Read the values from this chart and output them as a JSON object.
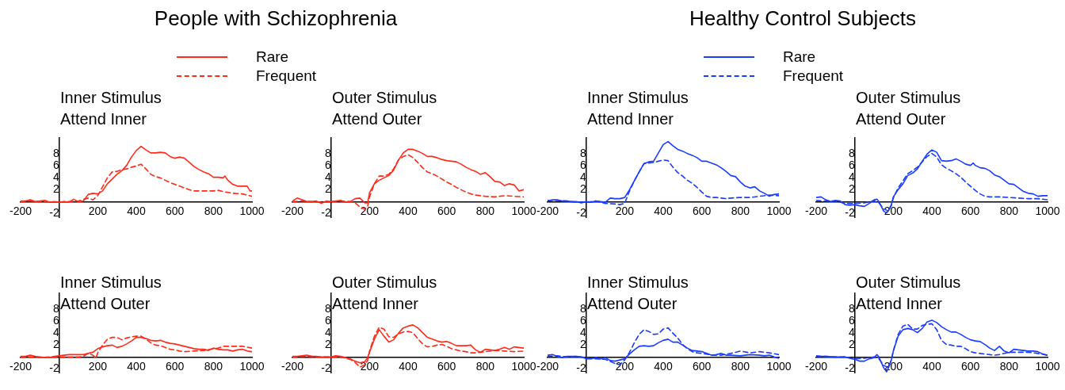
{
  "chart_data": [
    {
      "type": "line",
      "title": "People with Schizophrenia",
      "subtitle": "Inner Stimulus\nAttend Inner",
      "legend": "top",
      "xlim": [
        -200,
        1000
      ],
      "ylim": [
        -2.7,
        10.8
      ],
      "xticks": [
        -200,
        200,
        400,
        600,
        800,
        1000
      ],
      "yticks": [
        -2,
        2,
        4,
        6,
        8
      ],
      "series": [
        {
          "name": "Rare",
          "color": "#ff2a1a",
          "line_style": "solid",
          "x": [
            -200,
            -175,
            -150,
            -125,
            -100,
            -75,
            -50,
            -25,
            0,
            25,
            50,
            75,
            100,
            125,
            150,
            175,
            200,
            225,
            250,
            275,
            300,
            325,
            350,
            375,
            400,
            425,
            450,
            475,
            500,
            525,
            550,
            575,
            600,
            625,
            650,
            675,
            700,
            725,
            750,
            775,
            800,
            825,
            850,
            860,
            875,
            900,
            925,
            950,
            975,
            990,
            1000
          ],
          "values": [
            0.1,
            0.1,
            0.3,
            0,
            0.1,
            0.2,
            -0.1,
            0,
            -0.1,
            0,
            -0.1,
            0.4,
            0,
            0.1,
            1.2,
            1.4,
            1.3,
            1.8,
            3,
            3.8,
            4.6,
            5.2,
            6.1,
            7.5,
            8.6,
            9.3,
            8.7,
            8.2,
            8.2,
            8.3,
            8.2,
            7.6,
            7.3,
            7.5,
            7.3,
            6.6,
            5.9,
            5.4,
            5,
            4.7,
            4.1,
            4.1,
            4,
            4.3,
            3.6,
            2.9,
            2.6,
            2.6,
            2.6,
            1.8,
            1.8
          ]
        },
        {
          "name": "Frequent",
          "color": "#ff2a1a",
          "line_style": "dashed",
          "x": [
            -200,
            -150,
            -100,
            -50,
            0,
            50,
            100,
            150,
            175,
            200,
            225,
            250,
            275,
            300,
            325,
            350,
            375,
            400,
            425,
            450,
            475,
            500,
            525,
            550,
            575,
            600,
            625,
            650,
            675,
            700,
            750,
            800,
            825,
            850,
            900,
            950,
            1000
          ],
          "values": [
            0,
            0.1,
            0,
            -0.1,
            -0.1,
            0,
            0.1,
            0.6,
            0.3,
            1,
            2.5,
            4,
            5,
            5.1,
            5.4,
            5.5,
            5.8,
            6,
            6.3,
            5.5,
            4.6,
            4.2,
            4,
            3.6,
            3.2,
            2.9,
            2.6,
            2.3,
            2,
            1.8,
            1.8,
            1.8,
            1.9,
            1.7,
            1.4,
            1.3,
            0.9
          ]
        }
      ]
    },
    {
      "type": "line",
      "subtitle": "Outer Stimulus\nAttend Outer",
      "xlim": [
        -200,
        1000
      ],
      "ylim": [
        -2.7,
        10.8
      ],
      "xticks": [
        -200,
        200,
        400,
        600,
        800,
        1000
      ],
      "yticks": [
        -2,
        2,
        4,
        6,
        8
      ],
      "series": [
        {
          "color": "#ff2a1a",
          "line_style": "solid",
          "x": [
            -200,
            -175,
            -150,
            -125,
            -100,
            -75,
            -50,
            -25,
            0,
            25,
            50,
            75,
            100,
            125,
            150,
            175,
            190,
            200,
            225,
            250,
            275,
            300,
            325,
            350,
            375,
            400,
            425,
            450,
            475,
            500,
            525,
            550,
            575,
            600,
            625,
            650,
            675,
            700,
            725,
            750,
            775,
            800,
            825,
            850,
            875,
            900,
            925,
            950,
            975,
            1000
          ],
          "values": [
            0.1,
            0.6,
            0.3,
            0,
            0,
            0.1,
            -0.3,
            0.1,
            0,
            0.1,
            0.2,
            -0.1,
            0,
            0.5,
            0.6,
            -0.2,
            -0.2,
            1.5,
            3,
            3.6,
            4,
            4.4,
            5.3,
            7,
            8.2,
            8.8,
            8.8,
            8.5,
            8.1,
            7.6,
            7.6,
            7.4,
            7.1,
            6.9,
            6.8,
            6.7,
            6.3,
            5.8,
            5.4,
            5.1,
            4.6,
            4.9,
            4.2,
            3.4,
            3.3,
            2.7,
            3,
            2.8,
            1.8,
            2
          ]
        },
        {
          "color": "#ff2a1a",
          "line_style": "dashed",
          "x": [
            -200,
            -150,
            -100,
            -50,
            0,
            50,
            100,
            125,
            150,
            175,
            190,
            200,
            225,
            250,
            275,
            300,
            325,
            350,
            375,
            400,
            425,
            450,
            475,
            500,
            525,
            550,
            575,
            600,
            625,
            650,
            675,
            700,
            725,
            750,
            800,
            850,
            900,
            950,
            1000
          ],
          "values": [
            0,
            0.1,
            0,
            -0.1,
            0,
            0.1,
            0,
            -0.2,
            -0.9,
            -1.3,
            -0.8,
            0.8,
            3,
            4.3,
            4.3,
            4.6,
            5.5,
            7,
            7.6,
            7.9,
            7.4,
            6.6,
            5.7,
            5,
            4.7,
            4.3,
            3.8,
            3.3,
            2.9,
            2.4,
            2,
            1.6,
            1.3,
            1.1,
            0.9,
            0.8,
            1,
            0.9,
            0.8
          ]
        }
      ]
    },
    {
      "type": "line",
      "title": "Healthy Control Subjects",
      "subtitle": "Inner Stimulus\nAttend Inner",
      "legend": "top",
      "xlim": [
        -200,
        1000
      ],
      "ylim": [
        -2.7,
        10.8
      ],
      "xticks": [
        -200,
        200,
        400,
        600,
        800,
        1000
      ],
      "yticks": [
        -2,
        2,
        4,
        6,
        8
      ],
      "series": [
        {
          "name": "Rare",
          "color": "#1a3cff",
          "line_style": "solid",
          "x": [
            -200,
            -175,
            -150,
            -125,
            -100,
            -75,
            -50,
            -25,
            0,
            25,
            50,
            75,
            100,
            125,
            150,
            175,
            200,
            225,
            250,
            275,
            300,
            325,
            350,
            375,
            400,
            425,
            450,
            475,
            500,
            525,
            550,
            575,
            600,
            625,
            650,
            675,
            700,
            725,
            750,
            775,
            800,
            825,
            850,
            875,
            900,
            925,
            950,
            975,
            1000
          ],
          "values": [
            0.1,
            0.3,
            0.3,
            0.1,
            0.1,
            0,
            0,
            -0.2,
            0,
            -0.1,
            0.1,
            0,
            -0.1,
            0.6,
            0.5,
            0.5,
            0.7,
            2,
            3.5,
            5,
            6.4,
            6.7,
            6.8,
            8.2,
            9.6,
            10.1,
            9.4,
            8.8,
            8.5,
            8.1,
            7.8,
            7.4,
            6.8,
            6.8,
            6.5,
            6.2,
            5.7,
            5.1,
            4.4,
            4.2,
            3.3,
            2.6,
            2.3,
            2.5,
            1.8,
            1.4,
            0.9,
            1.2,
            1.3
          ]
        },
        {
          "name": "Frequent",
          "color": "#1a3cff",
          "line_style": "dashed",
          "x": [
            -200,
            -150,
            -100,
            -50,
            0,
            50,
            100,
            150,
            175,
            200,
            225,
            250,
            275,
            300,
            325,
            350,
            375,
            400,
            425,
            450,
            475,
            500,
            525,
            550,
            575,
            600,
            625,
            650,
            675,
            700,
            725,
            750,
            800,
            850,
            900,
            950,
            1000
          ],
          "values": [
            0.2,
            0.2,
            0.1,
            -0.1,
            -0.1,
            0.1,
            -0.3,
            -0.4,
            -0.5,
            -0.3,
            1.8,
            3.5,
            5,
            6.4,
            6.5,
            6.6,
            6.8,
            7,
            6.9,
            5.8,
            4.9,
            4.3,
            3.6,
            3.1,
            2.4,
            1.6,
            0.9,
            0.7,
            0.7,
            0.6,
            0.5,
            0.6,
            0.7,
            0.7,
            0.9,
            1.1,
            1
          ]
        }
      ]
    },
    {
      "type": "line",
      "subtitle": "Outer Stimulus\nAttend Outer",
      "xlim": [
        -200,
        1000
      ],
      "ylim": [
        -2.7,
        10.8
      ],
      "xticks": [
        -200,
        200,
        400,
        600,
        800,
        1000
      ],
      "yticks": [
        -2,
        2,
        4,
        6,
        8
      ],
      "series": [
        {
          "color": "#1a3cff",
          "line_style": "solid",
          "x": [
            -200,
            -175,
            -150,
            -125,
            -100,
            -75,
            -50,
            -25,
            0,
            25,
            50,
            75,
            100,
            115,
            125,
            150,
            165,
            175,
            190,
            200,
            225,
            250,
            275,
            300,
            325,
            350,
            375,
            400,
            425,
            450,
            475,
            500,
            525,
            550,
            575,
            600,
            615,
            625,
            650,
            675,
            700,
            725,
            750,
            775,
            800,
            825,
            850,
            875,
            900,
            925,
            950,
            975,
            1000
          ],
          "values": [
            0.7,
            0.8,
            0.3,
            0,
            0.2,
            0.1,
            -0.5,
            -0.6,
            -0.5,
            -0.7,
            -0.8,
            -0.3,
            0.3,
            0.4,
            0,
            -1.6,
            -1.9,
            -1.5,
            -0.5,
            0.8,
            2,
            3,
            4.4,
            4.8,
            5.5,
            6.8,
            8,
            8.7,
            8.3,
            6.9,
            6.8,
            6.9,
            7.2,
            6.8,
            6.3,
            6.1,
            6.5,
            6.1,
            5.7,
            5.6,
            5.2,
            4.5,
            4.2,
            3.6,
            3,
            2.9,
            2.3,
            1.7,
            1.4,
            1.3,
            0.9,
            1,
            1
          ]
        },
        {
          "color": "#1a3cff",
          "line_style": "dashed",
          "x": [
            -200,
            -150,
            -100,
            -50,
            0,
            50,
            100,
            125,
            150,
            175,
            190,
            200,
            225,
            250,
            275,
            300,
            325,
            350,
            375,
            400,
            425,
            450,
            475,
            500,
            525,
            550,
            575,
            600,
            625,
            650,
            675,
            700,
            750,
            800,
            850,
            900,
            950,
            1000
          ],
          "values": [
            0.2,
            0.1,
            0.1,
            -0.3,
            -0.3,
            -0.2,
            0.1,
            -0.2,
            -1.2,
            -1.6,
            -0.6,
            0.6,
            2.3,
            3.5,
            4.7,
            5.2,
            5.8,
            6.7,
            7.6,
            8.1,
            7.5,
            6.2,
            5.6,
            5.2,
            4.7,
            4.1,
            3.3,
            2.6,
            1.9,
            1.3,
            0.9,
            0.8,
            0.8,
            0.7,
            0.6,
            0.5,
            0.5,
            0.3
          ]
        }
      ]
    },
    {
      "type": "line",
      "subtitle": "Inner Stimulus\nAttend Outer",
      "xlim": [
        -200,
        1000
      ],
      "ylim": [
        -2.7,
        10.8
      ],
      "xticks": [
        -200,
        200,
        400,
        600,
        800,
        1000
      ],
      "yticks": [
        -2,
        2,
        4,
        6,
        8
      ],
      "series": [
        {
          "color": "#ff2a1a",
          "line_style": "solid",
          "x": [
            -200,
            -175,
            -150,
            -125,
            -100,
            -75,
            -50,
            -25,
            0,
            25,
            50,
            75,
            100,
            125,
            150,
            175,
            200,
            225,
            250,
            275,
            300,
            325,
            350,
            375,
            400,
            425,
            450,
            475,
            500,
            525,
            550,
            575,
            600,
            625,
            650,
            675,
            700,
            725,
            750,
            775,
            800,
            825,
            850,
            875,
            900,
            925,
            950,
            975,
            1000
          ],
          "values": [
            0.1,
            0.1,
            0.3,
            0.1,
            0,
            -0.1,
            -0.1,
            0.1,
            0.2,
            0.3,
            0.4,
            0.4,
            0.4,
            0.4,
            0.6,
            0.8,
            1.4,
            1.7,
            1.9,
            2,
            1.6,
            1.8,
            2.2,
            2.7,
            3.3,
            3.3,
            3.1,
            2.8,
            2.7,
            2.8,
            2.5,
            2.3,
            2.2,
            2,
            1.8,
            1.6,
            1.4,
            1.3,
            1.3,
            1.1,
            1.5,
            1.3,
            1.2,
            1.2,
            1,
            1.2,
            1.3,
            1,
            0.9
          ]
        },
        {
          "color": "#ff2a1a",
          "line_style": "dashed",
          "x": [
            -200,
            -150,
            -100,
            -50,
            0,
            50,
            100,
            125,
            150,
            175,
            190,
            200,
            225,
            250,
            275,
            300,
            325,
            350,
            375,
            400,
            425,
            450,
            475,
            500,
            525,
            550,
            575,
            600,
            625,
            650,
            700,
            750,
            800,
            825,
            850,
            900,
            950,
            1000
          ],
          "values": [
            0,
            0,
            -0.1,
            0,
            0,
            0,
            0,
            0.1,
            0.6,
            0.3,
            -0.2,
            0.7,
            2,
            3,
            3.3,
            3.3,
            2.9,
            3.2,
            3.4,
            3.5,
            3.5,
            3,
            2.4,
            2,
            1.9,
            1.6,
            1.3,
            1.2,
            1,
            0.9,
            1,
            1.1,
            1.4,
            1.5,
            1.8,
            1.8,
            1.8,
            1.5
          ]
        }
      ]
    },
    {
      "type": "line",
      "subtitle": "Outer Stimulus\nAttend Inner",
      "xlim": [
        -200,
        1000
      ],
      "ylim": [
        -2.7,
        10.8
      ],
      "xticks": [
        -200,
        200,
        400,
        600,
        800,
        1000
      ],
      "yticks": [
        -2,
        2,
        4,
        6,
        8
      ],
      "series": [
        {
          "color": "#ff2a1a",
          "line_style": "solid",
          "x": [
            -200,
            -175,
            -150,
            -125,
            -100,
            -75,
            -50,
            0,
            25,
            50,
            75,
            100,
            125,
            150,
            175,
            190,
            200,
            225,
            250,
            275,
            300,
            325,
            350,
            375,
            400,
            425,
            450,
            475,
            500,
            525,
            550,
            575,
            600,
            625,
            650,
            675,
            700,
            725,
            750,
            775,
            800,
            825,
            850,
            875,
            900,
            925,
            950,
            975,
            1000
          ],
          "values": [
            0.1,
            0.1,
            0.2,
            0.3,
            0.1,
            0.1,
            0,
            0,
            0.2,
            0.1,
            -0.1,
            -0.3,
            -0.7,
            -1,
            -0.8,
            -0.1,
            0.8,
            3,
            4.6,
            3.5,
            2.5,
            2.9,
            4,
            4.9,
            5.2,
            5.4,
            4.9,
            4.1,
            3.3,
            3,
            2.7,
            2.5,
            2.6,
            2.3,
            1.9,
            1.9,
            1.9,
            2,
            1.2,
            0.8,
            1.3,
            1.2,
            1.1,
            1.3,
            1.6,
            1.3,
            1.7,
            1.6,
            1.5
          ]
        },
        {
          "color": "#ff2a1a",
          "line_style": "dashed",
          "x": [
            -200,
            -150,
            -100,
            -50,
            0,
            50,
            100,
            125,
            150,
            175,
            190,
            200,
            225,
            250,
            275,
            300,
            325,
            350,
            375,
            400,
            425,
            450,
            475,
            500,
            525,
            550,
            575,
            600,
            625,
            650,
            675,
            700,
            725,
            750,
            800,
            850,
            900,
            950,
            1000
          ],
          "values": [
            0,
            0.1,
            0.1,
            0,
            0,
            0,
            -0.4,
            -0.9,
            -1.7,
            -1.3,
            -0.6,
            1,
            3.5,
            5,
            4.7,
            3.4,
            3.3,
            3.9,
            4.2,
            4.3,
            4.1,
            3.1,
            2.2,
            1.7,
            1.8,
            2,
            2.1,
            1.8,
            1.4,
            1.2,
            1,
            0.9,
            0.7,
            0.7,
            0.9,
            1.1,
            1,
            0.9,
            1
          ]
        }
      ]
    },
    {
      "type": "line",
      "subtitle": "Inner Stimulus\nAttend Outer",
      "xlim": [
        -200,
        1000
      ],
      "ylim": [
        -2.7,
        10.8
      ],
      "xticks": [
        -200,
        200,
        400,
        600,
        800,
        1000
      ],
      "yticks": [
        -2,
        2,
        4,
        6,
        8
      ],
      "series": [
        {
          "color": "#1a3cff",
          "line_style": "solid",
          "x": [
            -200,
            -175,
            -150,
            -125,
            -100,
            -75,
            -50,
            -25,
            0,
            25,
            50,
            75,
            100,
            125,
            150,
            175,
            200,
            225,
            250,
            275,
            300,
            325,
            350,
            375,
            400,
            425,
            450,
            475,
            500,
            525,
            550,
            575,
            600,
            625,
            650,
            675,
            700,
            725,
            750,
            800,
            850,
            900,
            925,
            950,
            975,
            1000
          ],
          "values": [
            0.3,
            0.4,
            0.1,
            -0.1,
            0.1,
            0.1,
            0.1,
            0,
            -0.3,
            -0.3,
            -0.1,
            -0.3,
            -0.1,
            -0.6,
            -0.7,
            -0.5,
            -0.3,
            0.5,
            1.2,
            1.8,
            1.9,
            1.8,
            1.9,
            2.4,
            2.8,
            3,
            2.5,
            2.5,
            2,
            1.5,
            1.1,
            1,
            0.9,
            0.6,
            0.3,
            0.4,
            0.6,
            0.3,
            0.3,
            0.2,
            0.4,
            0.3,
            0.2,
            0.3,
            0,
            -0.2
          ]
        },
        {
          "color": "#1a3cff",
          "line_style": "dashed",
          "x": [
            -200,
            -150,
            -100,
            -50,
            0,
            50,
            100,
            150,
            175,
            200,
            225,
            250,
            275,
            300,
            325,
            350,
            375,
            400,
            425,
            450,
            475,
            500,
            525,
            550,
            575,
            600,
            625,
            650,
            700,
            750,
            800,
            850,
            900,
            950,
            1000
          ],
          "values": [
            0.1,
            0.2,
            0,
            0.1,
            -0.1,
            -0.3,
            -0.4,
            -1.1,
            -1.3,
            -0.5,
            0.8,
            2.4,
            3.8,
            4.6,
            4.3,
            3.8,
            3.9,
            4.7,
            4.9,
            4,
            3.2,
            2.1,
            1.4,
            0.9,
            0.7,
            0.6,
            0.5,
            0.3,
            0.3,
            0.6,
            1,
            0.7,
            0.9,
            0.7,
            0.4
          ]
        }
      ]
    },
    {
      "type": "line",
      "subtitle": "Outer Stimulus\nAttend Inner",
      "xlim": [
        -200,
        1000
      ],
      "ylim": [
        -2.7,
        10.8
      ],
      "xticks": [
        -200,
        200,
        400,
        600,
        800,
        1000
      ],
      "yticks": [
        -2,
        2,
        4,
        6,
        8
      ],
      "series": [
        {
          "color": "#1a3cff",
          "line_style": "solid",
          "x": [
            -200,
            -175,
            -150,
            -100,
            -50,
            0,
            25,
            50,
            75,
            100,
            115,
            125,
            150,
            165,
            175,
            190,
            200,
            225,
            250,
            275,
            300,
            325,
            350,
            375,
            400,
            425,
            450,
            475,
            500,
            525,
            550,
            575,
            600,
            625,
            650,
            675,
            700,
            725,
            750,
            775,
            800,
            825,
            850,
            875,
            900,
            925,
            950,
            975,
            1000
          ],
          "values": [
            0.2,
            0.1,
            0.1,
            0,
            0,
            -0.4,
            -0.7,
            -0.7,
            -0.3,
            -0.1,
            0.4,
            0,
            -1.8,
            -2.5,
            -1.8,
            -0.5,
            1,
            3.5,
            4.6,
            4.8,
            4.6,
            4.1,
            4.8,
            5.9,
            6.2,
            5.8,
            5.1,
            4.6,
            4.2,
            4.2,
            3.8,
            3.3,
            2.9,
            2.7,
            2.6,
            2.1,
            1.5,
            1.1,
            1.8,
            1,
            0.7,
            1.3,
            1.2,
            1.1,
            1,
            1,
            0.9,
            0.5,
            0.3
          ]
        },
        {
          "color": "#1a3cff",
          "line_style": "dashed",
          "x": [
            -200,
            -150,
            -100,
            -50,
            0,
            50,
            100,
            125,
            150,
            175,
            190,
            200,
            225,
            250,
            275,
            300,
            325,
            350,
            375,
            400,
            425,
            450,
            475,
            500,
            525,
            550,
            575,
            600,
            625,
            650,
            700,
            725,
            750,
            800,
            850,
            900,
            950,
            1000
          ],
          "values": [
            0.1,
            0.1,
            0,
            0,
            -0.3,
            -0.2,
            0,
            -0.3,
            -1.4,
            -1.8,
            -0.4,
            1,
            3.8,
            5.2,
            5.5,
            4.7,
            4.7,
            5.3,
            5.5,
            5.6,
            4.6,
            2.8,
            2.1,
            2,
            1.8,
            1.8,
            1.4,
            0.9,
            0.7,
            0.6,
            0.4,
            0.3,
            0.4,
            0.8,
            0.8,
            0.8,
            0.6,
            0.3
          ]
        }
      ]
    }
  ]
}
